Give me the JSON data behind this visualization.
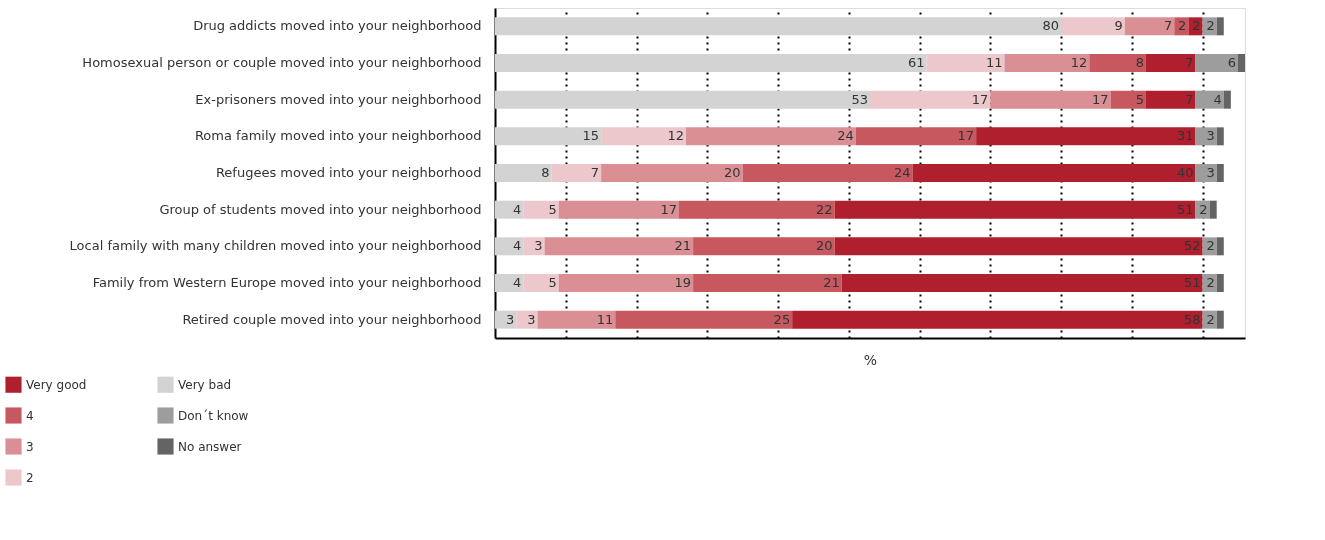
{
  "chart_data": {
    "type": "bar",
    "orientation": "horizontal",
    "stacked": true,
    "xlabel": "%",
    "categories": [
      "Drug addicts moved into your neighborhood",
      "Homosexual person or couple moved into your neighborhood",
      "Ex-prisoners moved into your neighborhood",
      "Roma family moved into your neighborhood",
      "Refugees moved into your neighborhood",
      "Group of students moved into your neighborhood",
      "Local family with many children moved into your neighborhood",
      "Family from Western Europe moved into your neighborhood",
      "Retired couple moved into your neighborhood"
    ],
    "series": [
      {
        "name": "Very bad",
        "color": "#d3d3d3",
        "values": [
          80,
          61,
          53,
          15,
          8,
          4,
          4,
          4,
          3
        ],
        "value_labels": [
          "80",
          "61",
          "53",
          "15",
          "8",
          "4",
          "4",
          "4",
          "3"
        ]
      },
      {
        "name": "2",
        "color": "#ecc8cc",
        "values": [
          9,
          11,
          17,
          12,
          7,
          5,
          3,
          5,
          3
        ],
        "value_labels": [
          "9",
          "11",
          "17",
          "12",
          "7",
          "5",
          "3",
          "5",
          "3"
        ]
      },
      {
        "name": "3",
        "color": "#d98f93",
        "values": [
          7,
          12,
          17,
          24,
          20,
          17,
          21,
          19,
          11
        ],
        "value_labels": [
          "7",
          "12",
          "17",
          "24",
          "20",
          "17",
          "21",
          "19",
          "11"
        ]
      },
      {
        "name": "4",
        "color": "#c7585f",
        "values": [
          2,
          8,
          5,
          17,
          24,
          22,
          20,
          21,
          25
        ],
        "value_labels": [
          "2",
          "8",
          "5",
          "17",
          "24",
          "22",
          "20",
          "21",
          "25"
        ]
      },
      {
        "name": "Very good",
        "color": "#b01f2e",
        "values": [
          2,
          7,
          7,
          31,
          40,
          51,
          52,
          51,
          58
        ],
        "value_labels": [
          "2",
          "7",
          "7",
          "31",
          "40",
          "51",
          "52",
          "51",
          "58"
        ]
      },
      {
        "name": "Don´t know",
        "color": "#9d9d9d",
        "values": [
          2,
          6,
          4,
          3,
          3,
          2,
          2,
          2,
          2
        ],
        "value_labels": [
          "2",
          "6",
          "4",
          "3",
          "3",
          "2",
          "2",
          "2",
          "2"
        ]
      },
      {
        "name": "No answer",
        "color": "#646464",
        "values": [
          1,
          1,
          1,
          1,
          1,
          1,
          1,
          1,
          1
        ],
        "value_labels": [
          null,
          null,
          null,
          null,
          null,
          null,
          null,
          null,
          null
        ]
      }
    ],
    "xlim": [
      0,
      106
    ],
    "xticks": [
      {
        "value": 10,
        "label": null
      },
      {
        "value": 20,
        "label": null
      },
      {
        "value": 30,
        "label": null
      },
      {
        "value": 40,
        "label": null
      },
      {
        "value": 50,
        "label": null
      },
      {
        "value": 60,
        "label": null
      },
      {
        "value": 70,
        "label": null
      },
      {
        "value": 80,
        "label": null
      },
      {
        "value": 90,
        "label": null
      },
      {
        "value": 100,
        "label": null
      }
    ],
    "tick_labels": "y",
    "grid": "x",
    "legend": "bottom left"
  }
}
